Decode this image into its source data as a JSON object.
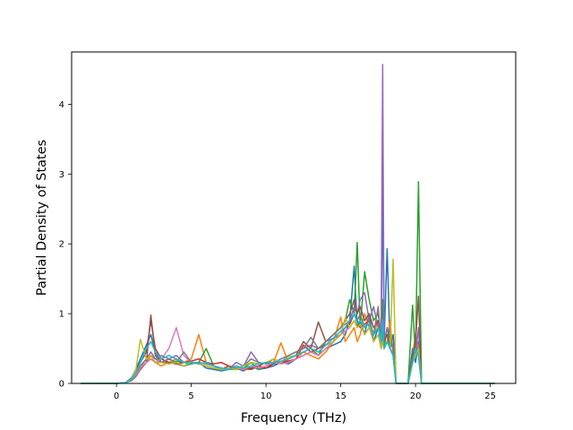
{
  "chart_data": {
    "type": "line",
    "title": "",
    "xlabel": "Frequency (THz)",
    "ylabel": "Partial Density of States",
    "xlim": [
      -3.0,
      26.7
    ],
    "ylim": [
      0,
      4.75
    ],
    "xticks": [
      0,
      5,
      10,
      15,
      20,
      25
    ],
    "yticks": [
      0,
      1,
      2,
      3,
      4
    ],
    "grid": false,
    "legend": "none",
    "colors": [
      "#1f77b4",
      "#ff7f0e",
      "#2ca02c",
      "#d62728",
      "#9467bd",
      "#8c564b",
      "#e377c2",
      "#7f7f7f",
      "#bcbd22",
      "#17becf"
    ],
    "series": [
      {
        "x": [
          -2.4,
          0.0,
          0.6,
          1.0,
          1.3,
          1.6,
          2.0,
          2.3,
          2.6,
          3.0,
          3.5,
          4.0,
          4.5,
          5.0,
          5.5,
          6.0,
          6.5,
          7.0,
          7.5,
          8.0,
          8.5,
          9.0,
          9.5,
          10.0,
          10.5,
          11.0,
          11.5,
          12.0,
          12.5,
          13.0,
          13.5,
          14.0,
          14.5,
          15.0,
          15.3,
          15.6,
          15.9,
          16.1,
          16.3,
          16.6,
          16.9,
          17.2,
          17.5,
          17.7,
          17.8,
          17.9,
          18.1,
          18.3,
          18.5,
          18.7,
          19.5,
          19.8,
          20.0,
          20.2,
          20.4,
          20.6,
          25.3
        ],
        "y": [
          0,
          0,
          0.01,
          0.08,
          0.2,
          0.35,
          0.55,
          0.7,
          0.45,
          0.3,
          0.35,
          0.3,
          0.25,
          0.28,
          0.3,
          0.22,
          0.2,
          0.18,
          0.2,
          0.22,
          0.18,
          0.25,
          0.2,
          0.22,
          0.25,
          0.3,
          0.28,
          0.35,
          0.4,
          0.45,
          0.4,
          0.5,
          0.55,
          0.6,
          0.7,
          0.9,
          1.68,
          0.8,
          0.9,
          0.7,
          1.0,
          0.6,
          0.8,
          0.6,
          2.9,
          0.6,
          1.93,
          0.5,
          0.7,
          0,
          0,
          0.5,
          0.3,
          0.6,
          0,
          0,
          0
        ]
      },
      {
        "x": [
          -2.4,
          0.0,
          0.6,
          1.0,
          1.3,
          1.6,
          2.0,
          2.3,
          2.6,
          3.0,
          3.5,
          4.0,
          4.5,
          5.0,
          5.5,
          6.0,
          6.5,
          7.0,
          7.5,
          8.0,
          8.5,
          9.0,
          9.5,
          10.0,
          10.5,
          11.0,
          11.5,
          12.0,
          12.5,
          13.0,
          13.5,
          14.0,
          14.5,
          15.0,
          15.3,
          15.6,
          15.9,
          16.1,
          16.3,
          16.6,
          16.9,
          17.2,
          17.5,
          17.7,
          17.8,
          17.9,
          18.1,
          18.3,
          18.5,
          18.7,
          19.5,
          19.8,
          20.0,
          20.2,
          20.4,
          20.6,
          25.3
        ],
        "y": [
          0,
          0,
          0.01,
          0.05,
          0.15,
          0.25,
          0.3,
          0.4,
          0.3,
          0.25,
          0.3,
          0.35,
          0.3,
          0.35,
          0.7,
          0.3,
          0.25,
          0.2,
          0.22,
          0.25,
          0.2,
          0.2,
          0.25,
          0.3,
          0.3,
          0.58,
          0.3,
          0.35,
          0.45,
          0.4,
          0.35,
          0.45,
          0.6,
          0.95,
          0.6,
          0.7,
          0.8,
          0.6,
          0.7,
          1.0,
          0.8,
          0.7,
          0.9,
          0.5,
          0.8,
          0.5,
          0.6,
          0.9,
          0.4,
          0,
          0,
          0.4,
          0.7,
          0.5,
          0,
          0,
          0
        ]
      },
      {
        "x": [
          -2.4,
          0.0,
          0.6,
          1.0,
          1.3,
          1.6,
          2.0,
          2.3,
          2.6,
          3.0,
          3.5,
          4.0,
          4.5,
          5.0,
          5.5,
          6.0,
          6.5,
          7.0,
          7.5,
          8.0,
          8.5,
          9.0,
          9.5,
          10.0,
          10.5,
          11.0,
          11.5,
          12.0,
          12.5,
          13.0,
          13.5,
          14.0,
          14.5,
          15.0,
          15.3,
          15.6,
          15.9,
          16.1,
          16.3,
          16.6,
          16.9,
          17.2,
          17.5,
          17.7,
          17.8,
          17.9,
          18.1,
          18.3,
          18.5,
          18.7,
          19.5,
          19.8,
          20.0,
          20.2,
          20.4,
          20.6,
          25.3
        ],
        "y": [
          0,
          0,
          0.01,
          0.05,
          0.12,
          0.2,
          0.3,
          0.35,
          0.3,
          0.3,
          0.28,
          0.32,
          0.3,
          0.28,
          0.3,
          0.5,
          0.25,
          0.22,
          0.2,
          0.2,
          0.22,
          0.3,
          0.2,
          0.25,
          0.28,
          0.3,
          0.35,
          0.4,
          0.45,
          0.5,
          0.4,
          0.6,
          0.7,
          0.8,
          0.9,
          1.2,
          1.0,
          2.02,
          0.8,
          1.6,
          1.2,
          0.9,
          1.0,
          0.7,
          1.2,
          0.5,
          0.8,
          0.6,
          0.5,
          0,
          0,
          1.12,
          0.4,
          2.89,
          0,
          0,
          0
        ]
      },
      {
        "x": [
          -2.4,
          0.0,
          0.6,
          1.0,
          1.3,
          1.6,
          2.0,
          2.3,
          2.6,
          3.0,
          3.5,
          4.0,
          4.5,
          5.0,
          5.5,
          6.0,
          6.5,
          7.0,
          7.5,
          8.0,
          8.5,
          9.0,
          9.5,
          10.0,
          10.5,
          11.0,
          11.5,
          12.0,
          12.5,
          13.0,
          13.5,
          14.0,
          14.5,
          15.0,
          15.3,
          15.6,
          15.9,
          16.1,
          16.3,
          16.6,
          16.9,
          17.2,
          17.5,
          17.7,
          17.8,
          17.9,
          18.1,
          18.3,
          18.5,
          18.7,
          19.5,
          19.8,
          20.0,
          20.2,
          20.4,
          20.6,
          25.3
        ],
        "y": [
          0,
          0,
          0.01,
          0.06,
          0.18,
          0.3,
          0.45,
          0.9,
          0.5,
          0.35,
          0.3,
          0.28,
          0.3,
          0.32,
          0.35,
          0.3,
          0.28,
          0.3,
          0.25,
          0.22,
          0.2,
          0.22,
          0.25,
          0.22,
          0.28,
          0.3,
          0.32,
          0.35,
          0.55,
          0.45,
          0.5,
          0.55,
          0.6,
          0.7,
          0.8,
          0.85,
          1.0,
          0.9,
          0.8,
          0.85,
          0.9,
          0.7,
          0.8,
          0.6,
          0.7,
          0.5,
          0.6,
          0.5,
          0.4,
          0,
          0,
          0.3,
          0.5,
          0.4,
          0,
          0,
          0
        ]
      },
      {
        "x": [
          -2.4,
          0.0,
          0.6,
          1.0,
          1.3,
          1.6,
          2.0,
          2.3,
          2.6,
          3.0,
          3.5,
          4.0,
          4.5,
          5.0,
          5.5,
          6.0,
          6.5,
          7.0,
          7.5,
          8.0,
          8.5,
          9.0,
          9.5,
          10.0,
          10.5,
          11.0,
          11.5,
          12.0,
          12.5,
          13.0,
          13.5,
          14.0,
          14.5,
          15.0,
          15.3,
          15.6,
          15.9,
          16.1,
          16.3,
          16.6,
          16.9,
          17.2,
          17.5,
          17.7,
          17.8,
          17.9,
          18.1,
          18.3,
          18.5,
          18.7,
          19.5,
          19.8,
          20.0,
          20.2,
          20.4,
          20.6,
          25.3
        ],
        "y": [
          0,
          0,
          0.01,
          0.05,
          0.15,
          0.25,
          0.35,
          0.45,
          0.35,
          0.3,
          0.35,
          0.4,
          0.3,
          0.3,
          0.28,
          0.3,
          0.25,
          0.22,
          0.2,
          0.3,
          0.25,
          0.45,
          0.3,
          0.28,
          0.3,
          0.35,
          0.4,
          0.45,
          0.5,
          0.55,
          0.5,
          0.6,
          0.65,
          0.7,
          0.8,
          0.9,
          1.1,
          1.0,
          1.2,
          1.3,
          0.9,
          1.1,
          0.8,
          0.7,
          4.57,
          0.6,
          0.8,
          0.7,
          0.5,
          0,
          0,
          0.3,
          0.4,
          0.8,
          0,
          0,
          0
        ]
      },
      {
        "x": [
          -2.4,
          0.0,
          0.6,
          1.0,
          1.3,
          1.6,
          2.0,
          2.3,
          2.6,
          3.0,
          3.5,
          4.0,
          4.5,
          5.0,
          5.5,
          6.0,
          6.5,
          7.0,
          7.5,
          8.0,
          8.5,
          9.0,
          9.5,
          10.0,
          10.5,
          11.0,
          11.5,
          12.0,
          12.5,
          13.0,
          13.5,
          14.0,
          14.5,
          15.0,
          15.3,
          15.6,
          15.9,
          16.1,
          16.3,
          16.6,
          16.9,
          17.2,
          17.5,
          17.7,
          17.8,
          17.9,
          18.1,
          18.3,
          18.5,
          18.7,
          19.5,
          19.8,
          20.0,
          20.2,
          20.4,
          20.6,
          25.3
        ],
        "y": [
          0,
          0,
          0.01,
          0.04,
          0.1,
          0.2,
          0.3,
          0.98,
          0.4,
          0.3,
          0.3,
          0.28,
          0.25,
          0.3,
          0.28,
          0.25,
          0.22,
          0.2,
          0.25,
          0.2,
          0.22,
          0.2,
          0.25,
          0.3,
          0.28,
          0.3,
          0.35,
          0.4,
          0.6,
          0.5,
          0.88,
          0.6,
          0.7,
          0.8,
          0.9,
          1.0,
          1.2,
          1.0,
          1.1,
          0.9,
          1.0,
          0.8,
          0.9,
          0.7,
          0.8,
          0.6,
          0.7,
          0.5,
          0.4,
          0,
          0,
          0.4,
          0.6,
          1.25,
          0,
          0,
          0
        ]
      },
      {
        "x": [
          -2.4,
          0.0,
          0.6,
          1.0,
          1.3,
          1.6,
          2.0,
          2.3,
          2.6,
          3.0,
          3.5,
          4.0,
          4.5,
          5.0,
          5.5,
          6.0,
          6.5,
          7.0,
          7.5,
          8.0,
          8.5,
          9.0,
          9.5,
          10.0,
          10.5,
          11.0,
          11.5,
          12.0,
          12.5,
          13.0,
          13.5,
          14.0,
          14.5,
          15.0,
          15.3,
          15.6,
          15.9,
          16.1,
          16.3,
          16.6,
          16.9,
          17.2,
          17.5,
          17.7,
          17.8,
          17.9,
          18.1,
          18.3,
          18.5,
          18.7,
          19.5,
          19.8,
          20.0,
          20.2,
          20.4,
          20.6,
          25.3
        ],
        "y": [
          0,
          0,
          0.01,
          0.05,
          0.12,
          0.22,
          0.3,
          0.35,
          0.3,
          0.35,
          0.5,
          0.8,
          0.4,
          0.3,
          0.28,
          0.25,
          0.22,
          0.2,
          0.2,
          0.22,
          0.2,
          0.25,
          0.22,
          0.25,
          0.3,
          0.28,
          0.3,
          0.35,
          0.4,
          0.45,
          0.4,
          0.5,
          0.6,
          0.7,
          0.75,
          0.8,
          0.9,
          0.8,
          0.85,
          0.7,
          0.8,
          0.6,
          0.7,
          0.5,
          0.6,
          0.5,
          0.6,
          0.5,
          0.4,
          0,
          0,
          0.3,
          0.4,
          0.5,
          0,
          0,
          0
        ]
      },
      {
        "x": [
          -2.4,
          0.0,
          0.6,
          1.0,
          1.3,
          1.6,
          2.0,
          2.3,
          2.6,
          3.0,
          3.5,
          4.0,
          4.5,
          5.0,
          5.5,
          6.0,
          6.5,
          7.0,
          7.5,
          8.0,
          8.5,
          9.0,
          9.5,
          10.0,
          10.5,
          11.0,
          11.5,
          12.0,
          12.5,
          13.0,
          13.5,
          14.0,
          14.5,
          15.0,
          15.3,
          15.6,
          15.9,
          16.1,
          16.3,
          16.6,
          16.9,
          17.2,
          17.5,
          17.7,
          17.8,
          17.9,
          18.1,
          18.3,
          18.5,
          18.7,
          19.5,
          19.8,
          20.0,
          20.2,
          20.4,
          20.6,
          25.3
        ],
        "y": [
          0,
          0,
          0.01,
          0.05,
          0.15,
          0.25,
          0.35,
          0.4,
          0.35,
          0.4,
          0.35,
          0.3,
          0.45,
          0.3,
          0.3,
          0.28,
          0.25,
          0.22,
          0.2,
          0.22,
          0.25,
          0.35,
          0.3,
          0.28,
          0.35,
          0.3,
          0.4,
          0.45,
          0.5,
          0.66,
          0.5,
          0.6,
          0.7,
          0.8,
          0.85,
          0.9,
          1.0,
          0.9,
          1.0,
          0.8,
          0.9,
          0.7,
          1.1,
          0.6,
          0.7,
          0.5,
          0.6,
          0.5,
          0.4,
          0,
          0,
          0.3,
          0.4,
          0.5,
          0,
          0,
          0
        ]
      },
      {
        "x": [
          -2.4,
          0.0,
          0.6,
          1.0,
          1.3,
          1.6,
          2.0,
          2.3,
          2.6,
          3.0,
          3.5,
          4.0,
          4.5,
          5.0,
          5.5,
          6.0,
          6.5,
          7.0,
          7.5,
          8.0,
          8.5,
          9.0,
          9.5,
          10.0,
          10.5,
          11.0,
          11.5,
          12.0,
          12.5,
          13.0,
          13.5,
          14.0,
          14.5,
          15.0,
          15.3,
          15.6,
          15.9,
          16.1,
          16.3,
          16.6,
          16.9,
          17.2,
          17.5,
          17.7,
          17.8,
          17.9,
          18.1,
          18.3,
          18.5,
          18.7,
          19.5,
          19.8,
          20.0,
          20.2,
          20.4,
          20.6,
          25.3
        ],
        "y": [
          0,
          0,
          0.01,
          0.06,
          0.2,
          0.63,
          0.35,
          0.4,
          0.3,
          0.3,
          0.28,
          0.3,
          0.25,
          0.3,
          0.28,
          0.25,
          0.22,
          0.2,
          0.22,
          0.2,
          0.25,
          0.3,
          0.28,
          0.3,
          0.35,
          0.3,
          0.38,
          0.4,
          0.45,
          0.5,
          0.45,
          0.55,
          0.6,
          0.7,
          0.94,
          0.8,
          0.9,
          0.8,
          0.85,
          0.7,
          0.8,
          0.6,
          0.7,
          0.5,
          0.6,
          0.5,
          0.6,
          0.5,
          1.78,
          0,
          0,
          0.3,
          0.4,
          0.5,
          0,
          0,
          0
        ]
      },
      {
        "x": [
          -2.4,
          0.0,
          0.6,
          1.0,
          1.3,
          1.6,
          2.0,
          2.3,
          2.6,
          3.0,
          3.5,
          4.0,
          4.5,
          5.0,
          5.5,
          6.0,
          6.5,
          7.0,
          7.5,
          8.0,
          8.5,
          9.0,
          9.5,
          10.0,
          10.5,
          11.0,
          11.5,
          12.0,
          12.5,
          13.0,
          13.5,
          14.0,
          14.5,
          15.0,
          15.3,
          15.6,
          15.9,
          16.1,
          16.3,
          16.6,
          16.9,
          17.2,
          17.5,
          17.7,
          17.8,
          17.9,
          18.1,
          18.3,
          18.5,
          18.7,
          19.5,
          19.8,
          20.0,
          20.2,
          20.4,
          20.6,
          25.3
        ],
        "y": [
          0,
          0,
          0.01,
          0.05,
          0.15,
          0.3,
          0.5,
          0.6,
          0.45,
          0.35,
          0.4,
          0.35,
          0.3,
          0.3,
          0.28,
          0.3,
          0.25,
          0.22,
          0.2,
          0.25,
          0.22,
          0.25,
          0.28,
          0.3,
          0.3,
          0.32,
          0.35,
          0.4,
          0.45,
          0.5,
          0.45,
          0.55,
          0.65,
          0.75,
          0.8,
          0.9,
          1.0,
          0.85,
          0.9,
          0.8,
          0.85,
          0.7,
          0.8,
          0.6,
          0.9,
          0.5,
          0.6,
          0.5,
          0.4,
          0,
          0,
          0.3,
          0.5,
          0.4,
          0,
          0,
          0
        ]
      }
    ]
  }
}
